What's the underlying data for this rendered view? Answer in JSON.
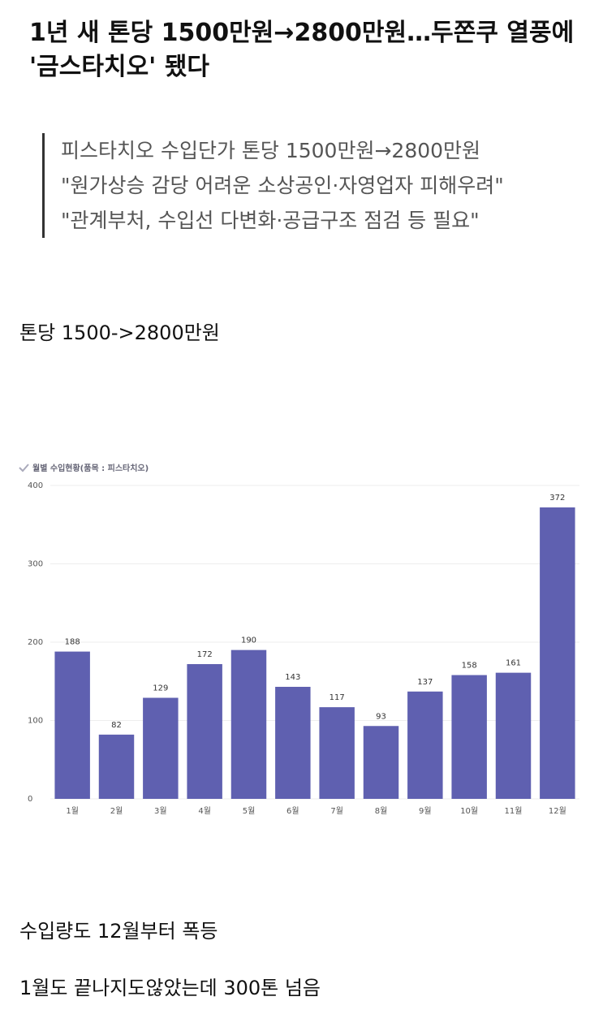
{
  "header": {
    "title": "1년 새 톤당 1500만원→2800만원…두쫀쿠 열풍에 '금스타치오' 됐다"
  },
  "quote": {
    "lines": [
      "피스타치오 수입단가 톤당 1500만원→2800만원",
      "\"원가상승 감당 어려운 소상공인·자영업자 피해우려\"",
      "\"관계부처, 수입선 다변화·공급구조 점검 등 필요\""
    ]
  },
  "paragraphs": [
    "톤당 1500->2800만원",
    "수입량도 12월부터 폭등",
    "1월도 끝나지도않았는데 300톤 넘음"
  ],
  "chart_data": {
    "type": "bar",
    "title": "월별 수입현황(품목 : 피스타치오)",
    "categories": [
      "1월",
      "2월",
      "3월",
      "4월",
      "5월",
      "6월",
      "7월",
      "8월",
      "9월",
      "10월",
      "11월",
      "12월"
    ],
    "values": [
      188,
      82,
      129,
      172,
      190,
      143,
      117,
      93,
      137,
      158,
      161,
      372
    ],
    "color": "#5f60b0",
    "ylim": [
      0,
      400
    ],
    "yticks": [
      0,
      100,
      200,
      300,
      400
    ],
    "grid": true
  }
}
